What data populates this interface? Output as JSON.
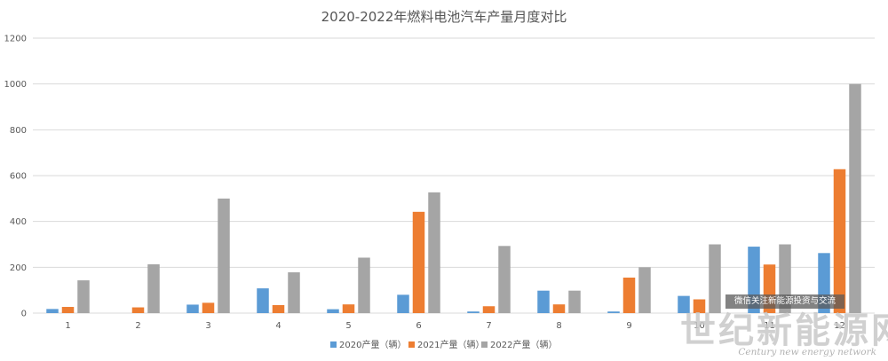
{
  "chart_data": {
    "type": "bar",
    "title": "2020-2022年燃料电池汽车产量月度对比",
    "categories": [
      "1",
      "2",
      "3",
      "4",
      "5",
      "6",
      "7",
      "8",
      "9",
      "10",
      "11",
      "12"
    ],
    "series": [
      {
        "name": "2020产量（辆）",
        "color": "#5b9bd5",
        "values": [
          18,
          0,
          37,
          108,
          17,
          80,
          7,
          98,
          7,
          75,
          290,
          262
        ]
      },
      {
        "name": "2021产量（辆）",
        "color": "#ed7d31",
        "values": [
          27,
          25,
          45,
          35,
          38,
          442,
          30,
          38,
          155,
          60,
          212,
          628
        ]
      },
      {
        "name": "2022产量（辆）",
        "color": "#a5a5a5",
        "values": [
          143,
          213,
          500,
          178,
          242,
          527,
          293,
          98,
          200,
          300,
          300,
          1000
        ]
      }
    ],
    "ylim": [
      0,
      1200
    ],
    "yticks": [
      "0",
      "200",
      "400",
      "600",
      "800",
      "1000",
      "1200"
    ],
    "grid": true,
    "legend_position": "bottom"
  },
  "watermark": {
    "box_text": "微信关注新能源投资与交流",
    "site_name": "世纪新能源网",
    "site_en": "Century new energy network"
  }
}
